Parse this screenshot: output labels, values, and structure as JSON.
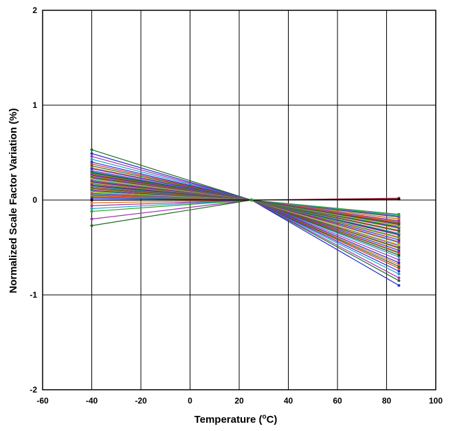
{
  "chart_data": {
    "type": "line",
    "title": "",
    "xlabel": {
      "main": "Temperature (",
      "sup": "o",
      "tail": "C)"
    },
    "ylabel": "Normalized Scale Factor Variation (%)",
    "xlim": [
      -60,
      100
    ],
    "ylim": [
      -2,
      2
    ],
    "xticks": [
      -60,
      -40,
      -20,
      0,
      20,
      40,
      60,
      80,
      100
    ],
    "yticks": [
      -2,
      -1,
      0,
      1,
      2
    ],
    "grid": true,
    "legend": "none",
    "pivot": {
      "x": 25,
      "y": 0
    },
    "x": [
      -40,
      25,
      85
    ],
    "series": [
      {
        "color": "#1f6b1f",
        "values": [
          0.53,
          0,
          -0.85
        ]
      },
      {
        "color": "#2b2bd0",
        "values": [
          0.49,
          0,
          -0.9
        ]
      },
      {
        "color": "#9b2fae",
        "values": [
          0.46,
          0,
          -0.82
        ]
      },
      {
        "color": "#1aa0c0",
        "values": [
          0.43,
          0,
          -0.78
        ]
      },
      {
        "color": "#2b2bd0",
        "values": [
          0.4,
          0,
          -0.75
        ]
      },
      {
        "color": "#d03030",
        "values": [
          0.38,
          0,
          -0.72
        ]
      },
      {
        "color": "#1f6b1f",
        "values": [
          0.36,
          0,
          -0.7
        ]
      },
      {
        "color": "#e07020",
        "values": [
          0.34,
          0,
          -0.68
        ]
      },
      {
        "color": "#2b2bd0",
        "values": [
          0.33,
          0,
          -0.66
        ]
      },
      {
        "color": "#9b2fae",
        "values": [
          0.31,
          0,
          -0.63
        ]
      },
      {
        "color": "#1aa0c0",
        "values": [
          0.3,
          0,
          -0.6
        ]
      },
      {
        "color": "#303030",
        "values": [
          0.29,
          0,
          -0.58
        ]
      },
      {
        "color": "#2ba02b",
        "values": [
          0.28,
          0,
          -0.56
        ]
      },
      {
        "color": "#d03030",
        "values": [
          0.27,
          0,
          -0.55
        ]
      },
      {
        "color": "#2b2bd0",
        "values": [
          0.26,
          0,
          -0.53
        ]
      },
      {
        "color": "#e07020",
        "values": [
          0.25,
          0,
          -0.51
        ]
      },
      {
        "color": "#1f6b1f",
        "values": [
          0.24,
          0,
          -0.5
        ]
      },
      {
        "color": "#9b2fae",
        "values": [
          0.23,
          0,
          -0.48
        ]
      },
      {
        "color": "#c8c820",
        "values": [
          0.22,
          0,
          -0.47
        ]
      },
      {
        "color": "#1aa0c0",
        "values": [
          0.21,
          0,
          -0.45
        ]
      },
      {
        "color": "#d03030",
        "values": [
          0.2,
          0,
          -0.44
        ]
      },
      {
        "color": "#2b2bd0",
        "values": [
          0.19,
          0,
          -0.42
        ]
      },
      {
        "color": "#e07020",
        "values": [
          0.18,
          0,
          -0.4
        ]
      },
      {
        "color": "#2ba02b",
        "values": [
          0.17,
          0,
          -0.39
        ]
      },
      {
        "color": "#9b2fae",
        "values": [
          0.16,
          0,
          -0.37
        ]
      },
      {
        "color": "#303030",
        "values": [
          0.15,
          0,
          -0.36
        ]
      },
      {
        "color": "#1aa0c0",
        "values": [
          0.14,
          0,
          -0.35
        ]
      },
      {
        "color": "#d03030",
        "values": [
          0.13,
          0,
          -0.33
        ]
      },
      {
        "color": "#1f6b1f",
        "values": [
          0.12,
          0,
          -0.32
        ]
      },
      {
        "color": "#e07020",
        "values": [
          0.11,
          0,
          -0.3
        ]
      },
      {
        "color": "#2b2bd0",
        "values": [
          0.1,
          0,
          -0.29
        ]
      },
      {
        "color": "#2ba02b",
        "values": [
          0.09,
          0,
          -0.28
        ]
      },
      {
        "color": "#c8c820",
        "values": [
          0.08,
          0,
          -0.27
        ]
      },
      {
        "color": "#9b2fae",
        "values": [
          0.07,
          0,
          -0.26
        ]
      },
      {
        "color": "#1aa0c0",
        "values": [
          0.06,
          0,
          -0.25
        ]
      },
      {
        "color": "#d03030",
        "values": [
          0.05,
          0,
          -0.24
        ]
      },
      {
        "color": "#e07020",
        "values": [
          0.04,
          0,
          -0.23
        ]
      },
      {
        "color": "#2ba02b",
        "values": [
          0.03,
          0,
          -0.22
        ]
      },
      {
        "color": "#2b2bd0",
        "values": [
          0.02,
          0,
          -0.2
        ]
      },
      {
        "color": "#1f6b1f",
        "values": [
          0.0,
          0,
          -0.18
        ]
      },
      {
        "color": "#e07020",
        "values": [
          -0.03,
          0,
          -0.2
        ]
      },
      {
        "color": "#9b2fae",
        "values": [
          -0.06,
          0,
          -0.17
        ]
      },
      {
        "color": "#1aa0c0",
        "values": [
          -0.09,
          0,
          -0.16
        ]
      },
      {
        "color": "#2ba02b",
        "values": [
          -0.12,
          0,
          -0.15
        ]
      },
      {
        "color": "#9b2fae",
        "values": [
          -0.2,
          0,
          -0.22
        ]
      },
      {
        "color": "#1f6b1f",
        "values": [
          -0.27,
          0,
          -0.25
        ]
      },
      {
        "color": "#d03050",
        "values": [
          0.0,
          0,
          0.02
        ]
      },
      {
        "color": "#000000",
        "values": [
          0.0,
          0,
          0.01
        ]
      }
    ]
  }
}
